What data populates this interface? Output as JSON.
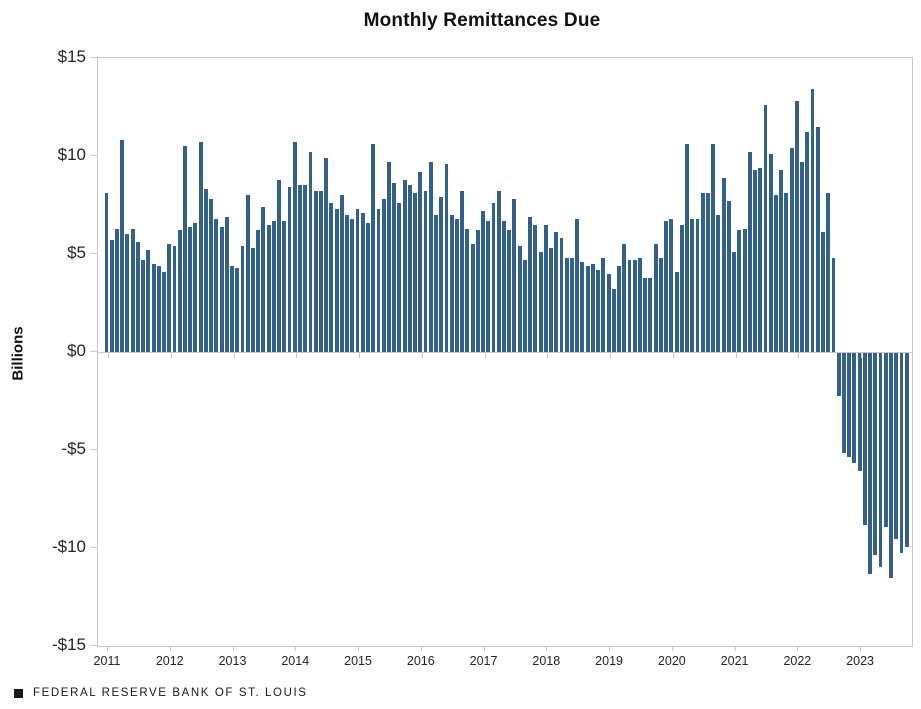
{
  "chart_data": {
    "type": "bar",
    "title": "Monthly Remittances Due",
    "ylabel": "Billions",
    "units": "USD billions",
    "ylim": [
      -15,
      15
    ],
    "grid": false,
    "bar_color": "#34608C",
    "axis_color": "#c8c8c8",
    "ytick_labels": [
      "$15",
      "$10",
      "$5",
      "$0",
      "-$5",
      "-$10",
      "-$15"
    ],
    "ytick_values": [
      15,
      10,
      5,
      0,
      -5,
      -10,
      -15
    ],
    "x_year_labels": [
      "2011",
      "2012",
      "2013",
      "2014",
      "2015",
      "2016",
      "2017",
      "2018",
      "2019",
      "2020",
      "2021",
      "2022",
      "2023"
    ],
    "start_month": "2011-01",
    "end_month": "2023-10",
    "values": [
      8.1,
      5.7,
      6.3,
      10.8,
      6.0,
      6.3,
      5.6,
      4.7,
      5.2,
      4.5,
      4.4,
      4.1,
      5.5,
      5.4,
      6.2,
      10.5,
      6.4,
      6.6,
      10.7,
      8.3,
      7.8,
      6.8,
      6.4,
      6.9,
      4.4,
      4.3,
      5.4,
      8.0,
      5.3,
      6.2,
      7.4,
      6.5,
      6.7,
      8.8,
      6.7,
      8.4,
      10.7,
      8.5,
      8.5,
      10.2,
      8.2,
      8.2,
      9.9,
      7.6,
      7.3,
      8.0,
      7.0,
      6.8,
      7.3,
      7.1,
      6.6,
      10.6,
      7.3,
      7.8,
      9.7,
      8.6,
      7.6,
      8.8,
      8.5,
      8.1,
      9.2,
      8.2,
      9.7,
      7.0,
      7.9,
      9.6,
      7.0,
      6.8,
      8.2,
      6.3,
      5.5,
      6.2,
      7.2,
      6.7,
      7.6,
      8.2,
      6.7,
      6.2,
      7.8,
      5.4,
      4.7,
      6.9,
      6.5,
      5.1,
      6.5,
      5.3,
      6.1,
      5.8,
      4.8,
      4.8,
      6.8,
      4.6,
      4.4,
      4.5,
      4.2,
      4.8,
      4.0,
      3.2,
      4.4,
      5.5,
      4.7,
      4.7,
      4.8,
      3.8,
      3.8,
      5.5,
      4.8,
      6.7,
      6.8,
      4.1,
      6.5,
      10.6,
      6.8,
      6.8,
      8.1,
      8.1,
      10.6,
      7.0,
      8.9,
      7.7,
      5.1,
      6.2,
      6.3,
      10.2,
      9.3,
      9.4,
      12.6,
      10.1,
      8.0,
      9.3,
      8.1,
      10.4,
      12.8,
      9.7,
      11.2,
      13.4,
      11.5,
      6.1,
      8.1,
      4.8,
      -2.2,
      -5.1,
      -5.3,
      -5.6,
      -6.0,
      -8.8,
      -11.3,
      -10.3,
      -10.9,
      -8.9,
      -11.5,
      -9.5,
      -10.2,
      -9.9
    ]
  },
  "footer": {
    "source_label": "FEDERAL RESERVE BANK OF ST. LOUIS"
  }
}
